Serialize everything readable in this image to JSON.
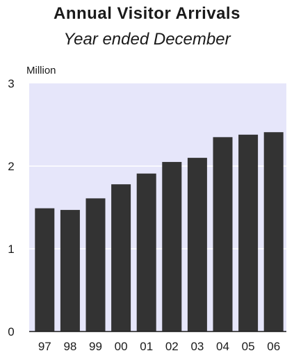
{
  "chart_data": {
    "type": "bar",
    "title": "Annual Visitor Arrivals",
    "subtitle": "Year ended December",
    "ylabel": "Million",
    "xlabel": "",
    "categories": [
      "97",
      "98",
      "99",
      "00",
      "01",
      "02",
      "03",
      "04",
      "05",
      "06"
    ],
    "values": [
      1.49,
      1.47,
      1.61,
      1.78,
      1.91,
      2.05,
      2.1,
      2.35,
      2.38,
      2.41
    ],
    "ylim": [
      0,
      3
    ],
    "yticks": [
      "0",
      "1",
      "2",
      "3"
    ],
    "grid": true,
    "legend": "none",
    "colors": {
      "plot_background": "#e6e6fa",
      "bar": "#333333",
      "gridline": "#ffffff",
      "axis": "#1a1a1a"
    }
  }
}
